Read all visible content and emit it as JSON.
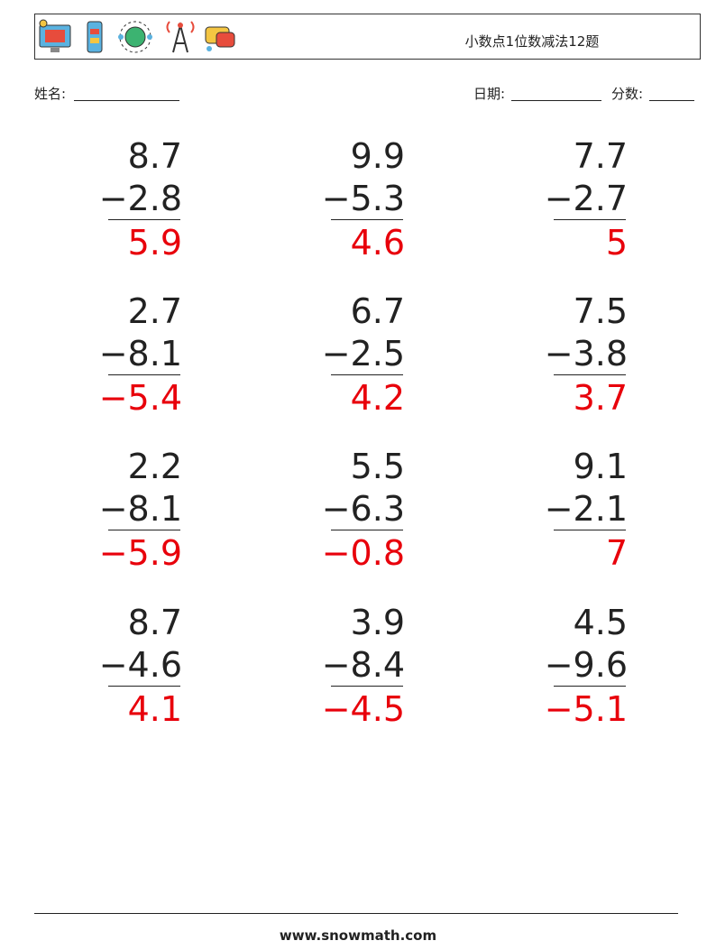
{
  "header": {
    "title": "小数点1位数减法12题"
  },
  "fields": {
    "name": "姓名:",
    "date": "日期:",
    "score": "分数:"
  },
  "problems": [
    {
      "top": "8.7",
      "bottom": "−2.8",
      "answer": "5.9"
    },
    {
      "top": "9.9",
      "bottom": "−5.3",
      "answer": "4.6"
    },
    {
      "top": "7.7",
      "bottom": "−2.7",
      "answer": "5"
    },
    {
      "top": "2.7",
      "bottom": "−8.1",
      "answer": "−5.4"
    },
    {
      "top": "6.7",
      "bottom": "−2.5",
      "answer": "4.2"
    },
    {
      "top": "7.5",
      "bottom": "−3.8",
      "answer": "3.7"
    },
    {
      "top": "2.2",
      "bottom": "−8.1",
      "answer": "−5.9"
    },
    {
      "top": "5.5",
      "bottom": "−6.3",
      "answer": "−0.8"
    },
    {
      "top": "9.1",
      "bottom": "−2.1",
      "answer": "7"
    },
    {
      "top": "8.7",
      "bottom": "−4.6",
      "answer": "4.1"
    },
    {
      "top": "3.9",
      "bottom": "−8.4",
      "answer": "−4.5"
    },
    {
      "top": "4.5",
      "bottom": "−9.6",
      "answer": "−5.1"
    }
  ],
  "footer": "www.snowmath.com"
}
